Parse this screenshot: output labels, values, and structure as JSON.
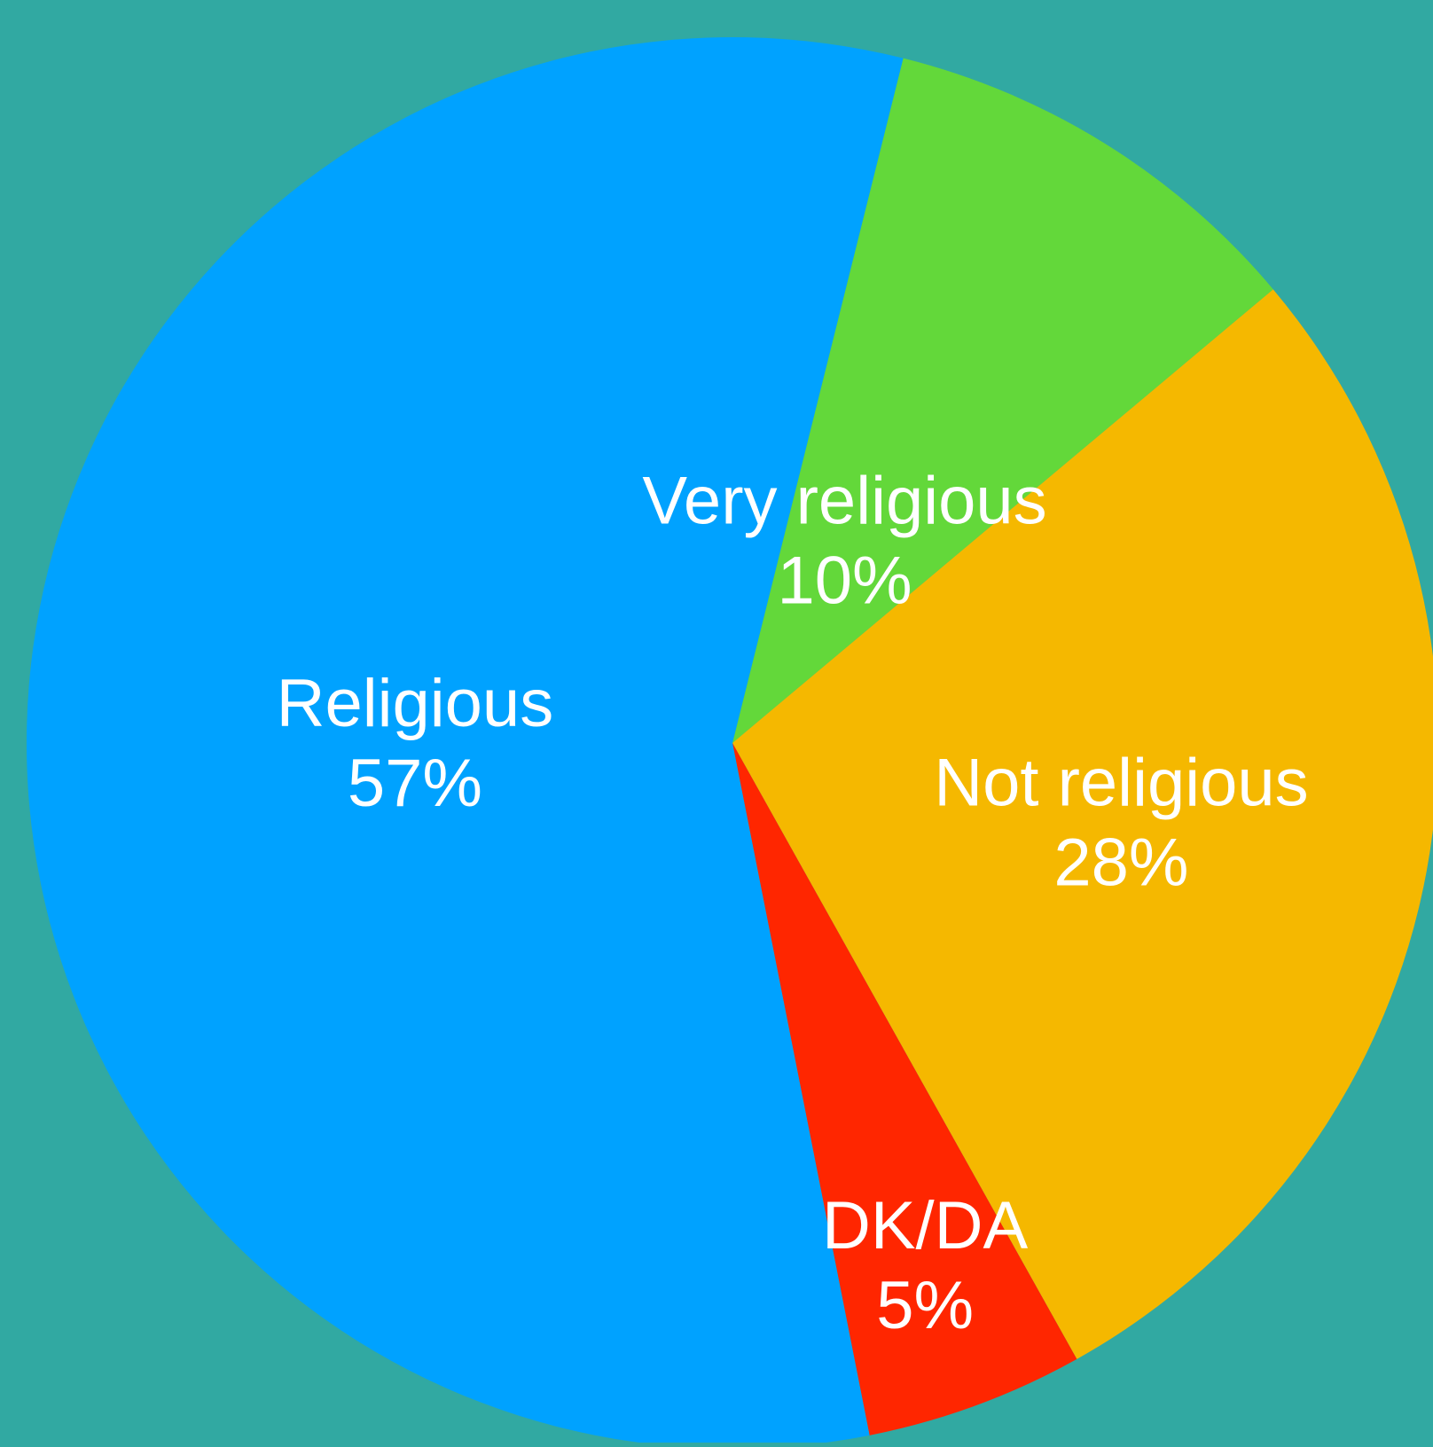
{
  "chart_data": {
    "type": "pie",
    "title": "",
    "slices": [
      {
        "label": "Very religious",
        "value": 10,
        "value_label": "10%",
        "color": "#63d83a"
      },
      {
        "label": "Not religious",
        "value": 28,
        "value_label": "28%",
        "color": "#f5b800"
      },
      {
        "label": "DK/DA",
        "value": 5,
        "value_label": "5%",
        "color": "#ff2600"
      },
      {
        "label": "Religious",
        "value": 57,
        "value_label": "57%",
        "color": "#00a2ff"
      }
    ],
    "legend": "none",
    "labels": "inside-slices"
  },
  "colors": {
    "background": "#31a9a2",
    "label_text": "#ffffff"
  }
}
